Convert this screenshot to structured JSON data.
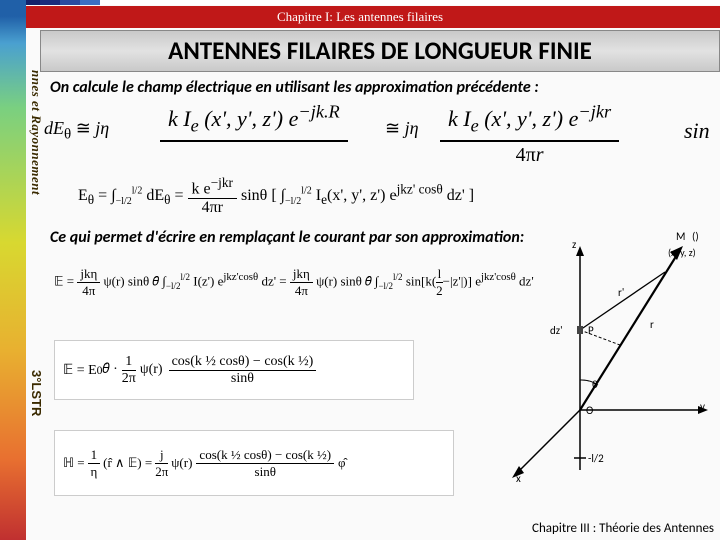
{
  "chapter": "Chapitre I: Les antennes filaires",
  "title": "ANTENNES  FILAIRES DE LONGUEUR FINIE",
  "sideText1": "nnes et Rayonnement",
  "sideText2": "3°LSTR",
  "text1": "On calcule le champ électrique  en utilisant les approximation  précédente :",
  "text2": "Ce qui permet d'écrire en remplaçant le courant par son approximation:",
  "footer": "Chapitre  III : Théorie des Antennes",
  "topStripColors": [
    "#0a1a5a",
    "#14226a",
    "#1a2c7c",
    "#2b4ba0",
    "#3c6fc2",
    "#ffffff",
    "#ffffff"
  ],
  "topStripWidths": [
    20,
    20,
    20,
    20,
    20,
    520,
    100
  ],
  "eq1a": {
    "pre": "dE",
    "sub": "θ",
    "mid": " ≅ jη  ",
    "num": "k I<sub>e</sub> (x', y', z') e<sup>−jk.R</sup>",
    "den": ""
  },
  "eq1b": {
    "mid": " ≅ jη  ",
    "num": "k I<sub>e</sub> (x', y', z') e<sup>−jkr</sup>",
    "den": "",
    "tail": " sin"
  },
  "eq2": {
    "left": "E<sub>θ</sub> =",
    "int": "∫<sub>−l/2</sub><sup>l/2</sup> dE<sub>θ</sub> = ",
    "frac": {
      "num": "k e<sup>−jkr</sup>",
      "den": "4πr"
    },
    "post": " sinθ [ ∫<sub>−l/2</sub><sup>l/2</sup> I<sub>e</sub>(x', y', z') e<sup>jkz' cosθ</sup> dz' ]"
  },
  "eq3": "𝔼 = jkη / 4π ψ(r) sinθ 𝜃̂ ∫<sub>−l/2</sub><sup>l/2</sup> I(z') e<sup>jkz' cosθ</sup> dz' = jkη / 4π ψ(r) sinθ 𝜃̂ ∫<sub>−l/2</sub><sup>l/2</sup> sin[k(l/2 − |z'|)] e<sup>jkz' cosθ</sup> dz'",
  "eq4": {
    "left": "𝔼 = E<sub>0</sub>𝜃̂ ·",
    "frac": {
      "num": "1",
      "den": "2π"
    },
    "mid": "ψ(r)",
    "big": {
      "num": "cos(k ½ cosθ) − cos(k ½)",
      "den": "sinθ"
    }
  },
  "eq5": {
    "left": "ℍ = ",
    "frac1": {
      "num": "1",
      "den": "η"
    },
    "mid1": " (r̂ ∧ 𝔼) = ",
    "frac2": {
      "num": "j",
      "den": "2π"
    },
    "mid2": " ψ(r)",
    "big": {
      "num": "cos(k ½ cosθ) − cos(k ½)",
      "den": "sinθ"
    },
    "tail": " φ̂"
  },
  "diagramLabels": {
    "M": "M",
    "Mq": "()",
    "coords": "(x, y, z)",
    "r": "r",
    "theta": "θ",
    "rprime": "r'",
    "p": "P",
    "dz": "dz'",
    "z": "z",
    "y": "y",
    "x": "x",
    "O": "O",
    "mhalf": "-l/2"
  }
}
